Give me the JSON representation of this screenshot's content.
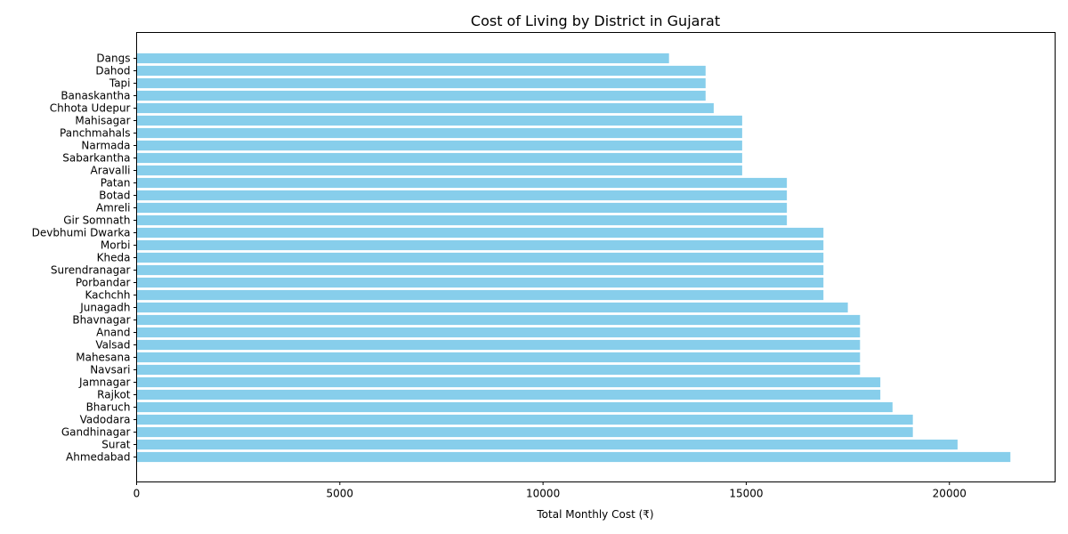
{
  "chart_data": {
    "type": "bar",
    "orientation": "horizontal",
    "title": "Cost of Living by District in Gujarat",
    "xlabel": "Total Monthly Cost (₹)",
    "ylabel": "",
    "xlim": [
      0,
      22600
    ],
    "xticks": [
      0,
      5000,
      10000,
      15000,
      20000
    ],
    "grid": false,
    "bar_color": "#87ceeb",
    "categories": [
      "Ahmedabad",
      "Surat",
      "Gandhinagar",
      "Vadodara",
      "Bharuch",
      "Rajkot",
      "Jamnagar",
      "Navsari",
      "Mahesana",
      "Valsad",
      "Anand",
      "Bhavnagar",
      "Junagadh",
      "Kachchh",
      "Porbandar",
      "Surendranagar",
      "Kheda",
      "Morbi",
      "Devbhumi Dwarka",
      "Gir Somnath",
      "Amreli",
      "Botad",
      "Patan",
      "Aravalli",
      "Sabarkantha",
      "Narmada",
      "Panchmahals",
      "Mahisagar",
      "Chhota Udepur",
      "Banaskantha",
      "Tapi",
      "Dahod",
      "Dangs"
    ],
    "values": [
      21500,
      20200,
      19100,
      19100,
      18600,
      18300,
      18300,
      17800,
      17800,
      17800,
      17800,
      17800,
      17500,
      16900,
      16900,
      16900,
      16900,
      16900,
      16900,
      16000,
      16000,
      16000,
      16000,
      14900,
      14900,
      14900,
      14900,
      14900,
      14200,
      14000,
      14000,
      14000,
      13100
    ]
  }
}
